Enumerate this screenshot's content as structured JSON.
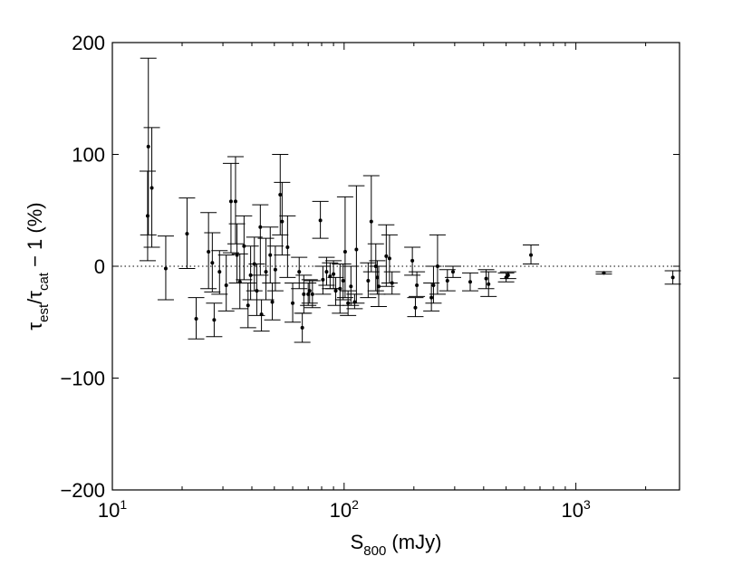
{
  "chart_data": {
    "type": "scatter",
    "x_scale": "log",
    "xlim": [
      10,
      2800
    ],
    "ylim": [
      -200,
      200
    ],
    "grid": false,
    "reference_line_y": 0,
    "xlabel": {
      "main": "S",
      "sub": "800",
      "unit": " (mJy)"
    },
    "ylabel": {
      "tau1": "τ",
      "sub1": "est",
      "slash": "/",
      "tau2": "τ",
      "sub2": "cat",
      "rest": " − 1 (%)"
    },
    "y_ticks": [
      {
        "value": 200,
        "label": "200"
      },
      {
        "value": 100,
        "label": "100"
      },
      {
        "value": 0,
        "label": "0"
      },
      {
        "value": -100,
        "label": "−100"
      },
      {
        "value": -200,
        "label": "−200"
      }
    ],
    "x_major_ticks": [
      {
        "value": 10,
        "base": "10",
        "exp": "1"
      },
      {
        "value": 100,
        "base": "10",
        "exp": "2"
      },
      {
        "value": 1000,
        "base": "10",
        "exp": "3"
      }
    ],
    "points": [
      {
        "x": 14.3,
        "y": 107,
        "lo": 28,
        "hi": 186
      },
      {
        "x": 14.2,
        "y": 45,
        "lo": 5,
        "hi": 85
      },
      {
        "x": 14.8,
        "y": 70,
        "lo": 17,
        "hi": 124
      },
      {
        "x": 17.0,
        "y": -2,
        "lo": -30,
        "hi": 27
      },
      {
        "x": 21.0,
        "y": 29,
        "lo": -2,
        "hi": 61
      },
      {
        "x": 23.0,
        "y": -47,
        "lo": -65,
        "hi": -28
      },
      {
        "x": 26.0,
        "y": 13,
        "lo": -20,
        "hi": 48
      },
      {
        "x": 27.5,
        "y": -48,
        "lo": -63,
        "hi": -33
      },
      {
        "x": 27.0,
        "y": 3,
        "lo": -23,
        "hi": 30
      },
      {
        "x": 29.0,
        "y": -5,
        "lo": -25,
        "hi": 14
      },
      {
        "x": 31.0,
        "y": -17,
        "lo": -40,
        "hi": 10
      },
      {
        "x": 32.5,
        "y": 58,
        "lo": 12,
        "hi": 92
      },
      {
        "x": 34.0,
        "y": 58,
        "lo": 20,
        "hi": 98
      },
      {
        "x": 34.5,
        "y": 10,
        "lo": -15,
        "hi": 38
      },
      {
        "x": 35.5,
        "y": -14,
        "lo": -38,
        "hi": 11
      },
      {
        "x": 37.0,
        "y": 18,
        "lo": -12,
        "hi": 45
      },
      {
        "x": 38.5,
        "y": -35,
        "lo": -55,
        "hi": -15
      },
      {
        "x": 39.5,
        "y": -8,
        "lo": -30,
        "hi": 18
      },
      {
        "x": 41.0,
        "y": 2,
        "lo": -22,
        "hi": 26
      },
      {
        "x": 42.0,
        "y": -22,
        "lo": -44,
        "hi": 2
      },
      {
        "x": 43.5,
        "y": 35,
        "lo": -8,
        "hi": 55
      },
      {
        "x": 44.0,
        "y": -43,
        "lo": -58,
        "hi": -30
      },
      {
        "x": 46.0,
        "y": -5,
        "lo": -30,
        "hi": 25
      },
      {
        "x": 48.0,
        "y": 10,
        "lo": -15,
        "hi": 35
      },
      {
        "x": 49.0,
        "y": -32,
        "lo": -48,
        "hi": -15
      },
      {
        "x": 50.5,
        "y": -3,
        "lo": -22,
        "hi": 18
      },
      {
        "x": 53.0,
        "y": 64,
        "lo": 28,
        "hi": 100
      },
      {
        "x": 54.0,
        "y": 40,
        "lo": 10,
        "hi": 75
      },
      {
        "x": 57.0,
        "y": 17,
        "lo": -10,
        "hi": 45
      },
      {
        "x": 60.0,
        "y": -33,
        "lo": -50,
        "hi": -15
      },
      {
        "x": 64.0,
        "y": -5,
        "lo": -20,
        "hi": 8
      },
      {
        "x": 66.0,
        "y": -55,
        "lo": -68,
        "hi": -42
      },
      {
        "x": 67.0,
        "y": -25,
        "lo": -42,
        "hi": -8
      },
      {
        "x": 70.0,
        "y": -25,
        "lo": -35,
        "hi": -15
      },
      {
        "x": 71.0,
        "y": -22,
        "lo": -33,
        "hi": -12
      },
      {
        "x": 73.0,
        "y": -25,
        "lo": -37,
        "hi": -13
      },
      {
        "x": 79.0,
        "y": 41,
        "lo": 25,
        "hi": 58
      },
      {
        "x": 81.0,
        "y": -12,
        "lo": -25,
        "hi": 0
      },
      {
        "x": 84.0,
        "y": -5,
        "lo": -17,
        "hi": 8
      },
      {
        "x": 87.0,
        "y": -9,
        "lo": -20,
        "hi": 3
      },
      {
        "x": 90.0,
        "y": -7,
        "lo": -20,
        "hi": 5
      },
      {
        "x": 92.0,
        "y": -22,
        "lo": -35,
        "hi": -10
      },
      {
        "x": 96.0,
        "y": -20,
        "lo": -42,
        "hi": 2
      },
      {
        "x": 99.0,
        "y": -13,
        "lo": -30,
        "hi": 2
      },
      {
        "x": 101.0,
        "y": 13,
        "lo": -28,
        "hi": 62
      },
      {
        "x": 104.0,
        "y": -33,
        "lo": -44,
        "hi": -22
      },
      {
        "x": 107.0,
        "y": -18,
        "lo": -35,
        "hi": 0
      },
      {
        "x": 111.0,
        "y": -32,
        "lo": -38,
        "hi": -25
      },
      {
        "x": 113.0,
        "y": 15,
        "lo": -33,
        "hi": 72
      },
      {
        "x": 127.0,
        "y": -13,
        "lo": -28,
        "hi": 3
      },
      {
        "x": 131.0,
        "y": 40,
        "lo": -5,
        "hi": 81
      },
      {
        "x": 137.0,
        "y": 0,
        "lo": -22,
        "hi": 20
      },
      {
        "x": 139.0,
        "y": -10,
        "lo": -25,
        "hi": 5
      },
      {
        "x": 141.0,
        "y": -18,
        "lo": -36,
        "hi": 0
      },
      {
        "x": 152.0,
        "y": 9,
        "lo": -18,
        "hi": 37
      },
      {
        "x": 157.0,
        "y": 7,
        "lo": -15,
        "hi": 28
      },
      {
        "x": 161.0,
        "y": -15,
        "lo": -25,
        "hi": -5
      },
      {
        "x": 197.0,
        "y": 5,
        "lo": -8,
        "hi": 17
      },
      {
        "x": 203.0,
        "y": -37,
        "lo": -45,
        "hi": -28
      },
      {
        "x": 206.0,
        "y": -17,
        "lo": -27,
        "hi": -5
      },
      {
        "x": 238.0,
        "y": -28,
        "lo": -40,
        "hi": -15
      },
      {
        "x": 243.0,
        "y": -17,
        "lo": -33,
        "hi": 0
      },
      {
        "x": 253.0,
        "y": 0,
        "lo": -25,
        "hi": 28
      },
      {
        "x": 279.0,
        "y": -13,
        "lo": -22,
        "hi": -3
      },
      {
        "x": 295.0,
        "y": -5,
        "lo": -10,
        "hi": 0
      },
      {
        "x": 350.0,
        "y": -14,
        "lo": -22,
        "hi": -6
      },
      {
        "x": 410.0,
        "y": -11,
        "lo": -20,
        "hi": -3
      },
      {
        "x": 420.0,
        "y": -16,
        "lo": -27,
        "hi": -5
      },
      {
        "x": 500.0,
        "y": -10,
        "lo": -14,
        "hi": -6
      },
      {
        "x": 510.0,
        "y": -8,
        "lo": -11,
        "hi": -5
      },
      {
        "x": 640.0,
        "y": 10,
        "lo": 2,
        "hi": 19
      },
      {
        "x": 1320.0,
        "y": -6,
        "lo": -7,
        "hi": -5
      },
      {
        "x": 2620.0,
        "y": -10,
        "lo": -16,
        "hi": -4
      }
    ]
  }
}
